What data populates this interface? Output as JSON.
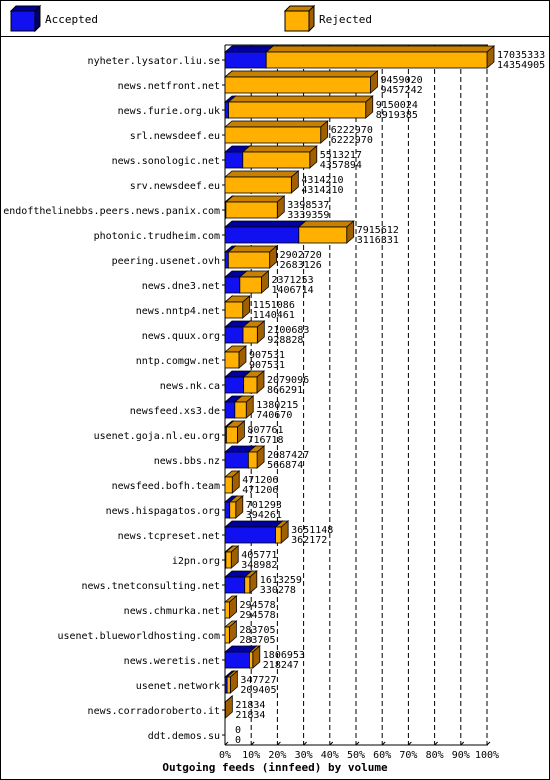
{
  "chart_data": {
    "type": "bar",
    "orientation": "horizontal",
    "stacked": false,
    "style": "3d",
    "title": "Outgoing feeds (innfeed) by volume",
    "legend": {
      "placement": "top",
      "entries": [
        "Accepted",
        "Rejected"
      ]
    },
    "xlim": [
      0,
      100
    ],
    "x_unit": "%",
    "x_ticks": [
      "0%",
      "10%",
      "20%",
      "30%",
      "40%",
      "50%",
      "60%",
      "70%",
      "80%",
      "90%",
      "100%"
    ],
    "grid": true,
    "colors": {
      "Accepted": "#1010f0",
      "Rejected": "#ffb000",
      "frame": "#000000"
    },
    "categories": [
      "nyheter.lysator.liu.se",
      "news.netfront.net",
      "news.furie.org.uk",
      "srl.newsdeef.eu",
      "news.sonologic.net",
      "srv.newsdeef.eu",
      "endofthelinebbs.peers.news.panix.com",
      "photonic.trudheim.com",
      "peering.usenet.ovh",
      "news.dne3.net",
      "news.nntp4.net",
      "news.quux.org",
      "nntp.comgw.net",
      "news.nk.ca",
      "newsfeed.xs3.de",
      "usenet.goja.nl.eu.org",
      "news.bbs.nz",
      "newsfeed.bofh.team",
      "news.hispagatos.org",
      "news.tcpreset.net",
      "i2pn.org",
      "news.tnetconsulting.net",
      "news.chmurka.net",
      "usenet.blueworldhosting.com",
      "news.weretis.net",
      "usenet.network",
      "news.corradoroberto.it",
      "ddt.demos.su"
    ],
    "series": [
      {
        "name": "Accepted",
        "values": [
          17035333,
          9459020,
          9150024,
          6222970,
          5513217,
          4314210,
          3398537,
          7915612,
          2902720,
          2371253,
          1151086,
          2100683,
          907531,
          2079096,
          1380215,
          807761,
          2087427,
          471206,
          701293,
          3651148,
          405771,
          1613259,
          294578,
          283705,
          1806953,
          347727,
          21834,
          0
        ]
      },
      {
        "name": "Rejected",
        "values": [
          14354905,
          9457242,
          8919385,
          6222970,
          4357894,
          4314210,
          3339359,
          3116331,
          2683126,
          1406714,
          1140461,
          928828,
          907531,
          866291,
          740670,
          716718,
          566874,
          471206,
          394261,
          362172,
          348982,
          330278,
          294578,
          283705,
          218247,
          209405,
          21834,
          0
        ]
      }
    ],
    "value_labels": [
      [
        "17035333",
        "14354905"
      ],
      [
        "9459020",
        "9457242"
      ],
      [
        "9150024",
        "8919385"
      ],
      [
        "6222970",
        "6222970"
      ],
      [
        "5513217",
        "4357894"
      ],
      [
        "4314210",
        "4314210"
      ],
      [
        "3398537",
        "3339359"
      ],
      [
        "7915612",
        "3116331"
      ],
      [
        "2902720",
        "2683126"
      ],
      [
        "2371253",
        "1406714"
      ],
      [
        "1151086",
        "1140461"
      ],
      [
        "2100683",
        "928828"
      ],
      [
        "907531",
        "907531"
      ],
      [
        "2079096",
        "866291"
      ],
      [
        "1380215",
        "740670"
      ],
      [
        "807761",
        "716718"
      ],
      [
        "2087427",
        "566874"
      ],
      [
        "471206",
        "471206"
      ],
      [
        "701293",
        "394261"
      ],
      [
        "3651148",
        "362172"
      ],
      [
        "405771",
        "348982"
      ],
      [
        "1613259",
        "330278"
      ],
      [
        "294578",
        "294578"
      ],
      [
        "283705",
        "283705"
      ],
      [
        "1806953",
        "218247"
      ],
      [
        "347727",
        "209405"
      ],
      [
        "21834",
        "21834"
      ],
      [
        "0",
        "0"
      ]
    ]
  }
}
